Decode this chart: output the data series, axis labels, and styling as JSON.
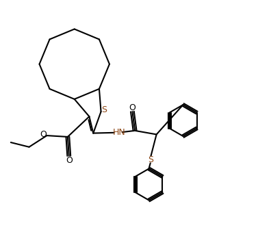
{
  "bg_color": "#ffffff",
  "line_color": "#000000",
  "s_color": "#8B4513",
  "lw": 1.5,
  "fig_width": 3.77,
  "fig_height": 3.58,
  "dpi": 100,
  "xlim": [
    0,
    10
  ],
  "ylim": [
    0,
    9.5
  ]
}
